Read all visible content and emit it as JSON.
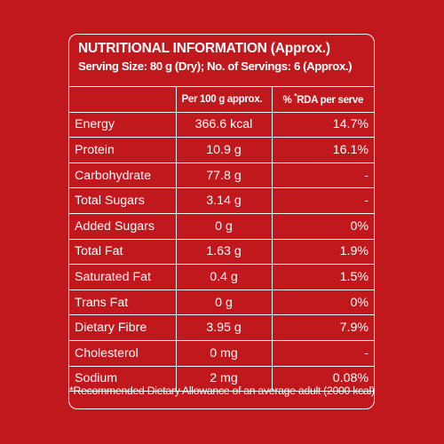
{
  "header": {
    "title": "NUTRITIONAL INFORMATION (Approx.)",
    "serving": "Serving Size: 80 g (Dry);  No. of Servings: 6 (Approx.)"
  },
  "table": {
    "columns": [
      "",
      "Per 100 g approx.",
      "% *RDA per serve"
    ],
    "col2_prefix": "% ",
    "col2_mark": "*",
    "col2_rest": "RDA per serve",
    "rows": [
      [
        "Energy",
        "366.6 kcal",
        "14.7%"
      ],
      [
        "Protein",
        "10.9 g",
        "16.1%"
      ],
      [
        "Carbohydrate",
        "77.8 g",
        "-"
      ],
      [
        "Total Sugars",
        "3.14 g",
        "-"
      ],
      [
        "Added Sugars",
        "0 g",
        "0%"
      ],
      [
        "Total Fat",
        "1.63 g",
        "1.9%"
      ],
      [
        "Saturated Fat",
        "0.4 g",
        "1.5%"
      ],
      [
        "Trans Fat",
        "0 g",
        "0%"
      ],
      [
        "Dietary Fibre",
        "3.95 g",
        "7.9%"
      ],
      [
        "Cholesterol",
        "0 mg",
        "-"
      ],
      [
        "Sodium",
        "2 mg",
        "0.08%"
      ]
    ]
  },
  "footer": {
    "note": "*Recommended Dietary Allowance of an average adult (2000 kcal)"
  },
  "colors": {
    "background": "#c1181d",
    "foreground": "#ffffff"
  }
}
